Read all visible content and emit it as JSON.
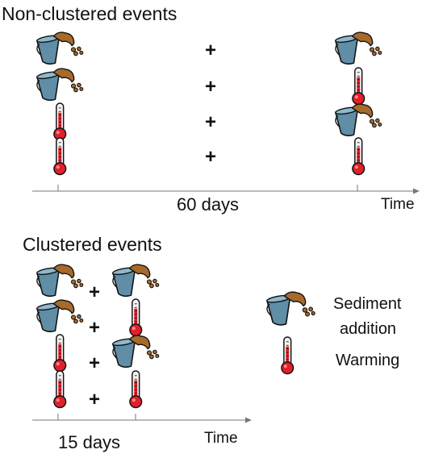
{
  "non_clustered": {
    "title": "Non-clustered events",
    "rows": [
      {
        "left": "sediment",
        "plus": "+",
        "right": "sediment"
      },
      {
        "left": "sediment",
        "plus": "+",
        "right": "warming"
      },
      {
        "left": "warming",
        "plus": "+",
        "right": "sediment"
      },
      {
        "left": "warming",
        "plus": "+",
        "right": "warming"
      }
    ],
    "interval_label": "60 days",
    "axis_label": "Time"
  },
  "clustered": {
    "title": "Clustered events",
    "rows": [
      {
        "left": "sediment",
        "plus": "+",
        "right": "sediment"
      },
      {
        "left": "sediment",
        "plus": "+",
        "right": "warming"
      },
      {
        "left": "warming",
        "plus": "+",
        "right": "sediment"
      },
      {
        "left": "warming",
        "plus": "+",
        "right": "warming"
      }
    ],
    "interval_label": "15 days",
    "axis_label": "Time"
  },
  "legend": {
    "sediment_label_line1": "Sediment",
    "sediment_label_line2": "addition",
    "warming_label": "Warming"
  },
  "icons": {
    "sediment": "bucket-pouring-sediment-icon",
    "warming": "thermometer-icon"
  },
  "colors": {
    "bucket": "#5f8ea6",
    "sediment": "#a86a2a",
    "thermometer_fill": "#e0202a"
  }
}
